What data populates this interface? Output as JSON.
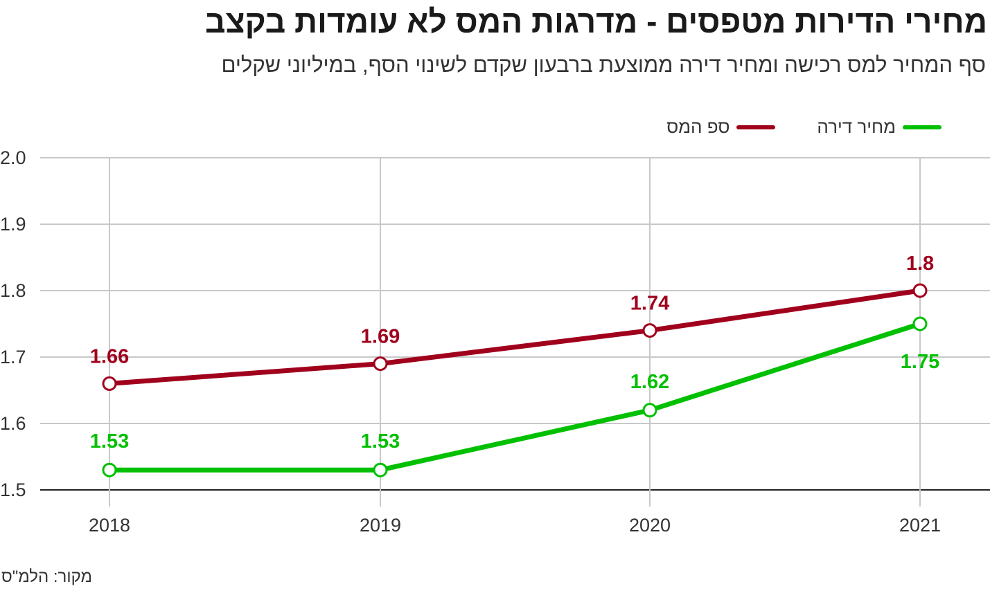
{
  "header": {
    "title": "מחירי הדירות מטפסים - מדרגות המס לא עומדות בקצב",
    "subtitle": "סף המחיר למס רכישה ומחיר דירה ממוצעת ברבעון שקדם לשינוי הסף, במיליוני שקלים"
  },
  "source": "מקור: הלמ\"ס",
  "colors": {
    "threshold": "#a0001c",
    "price": "#00c000"
  },
  "chart_data": {
    "type": "line",
    "x": [
      "2018",
      "2019",
      "2020",
      "2021"
    ],
    "series": [
      {
        "name": "ספ המס",
        "values": [
          1.66,
          1.69,
          1.74,
          1.8
        ],
        "labels": [
          "1.66",
          "1.69",
          "1.74",
          "1.8"
        ]
      },
      {
        "name": "מחיר דירה",
        "values": [
          1.53,
          1.53,
          1.62,
          1.75
        ],
        "labels": [
          "1.53",
          "1.53",
          "1.62",
          "1.75"
        ]
      }
    ],
    "ylim": [
      1.5,
      2.0
    ],
    "yticks": [
      "1.5",
      "1.6",
      "1.7",
      "1.8",
      "1.9",
      "2.0"
    ],
    "grid": true,
    "legend": "top-right"
  }
}
